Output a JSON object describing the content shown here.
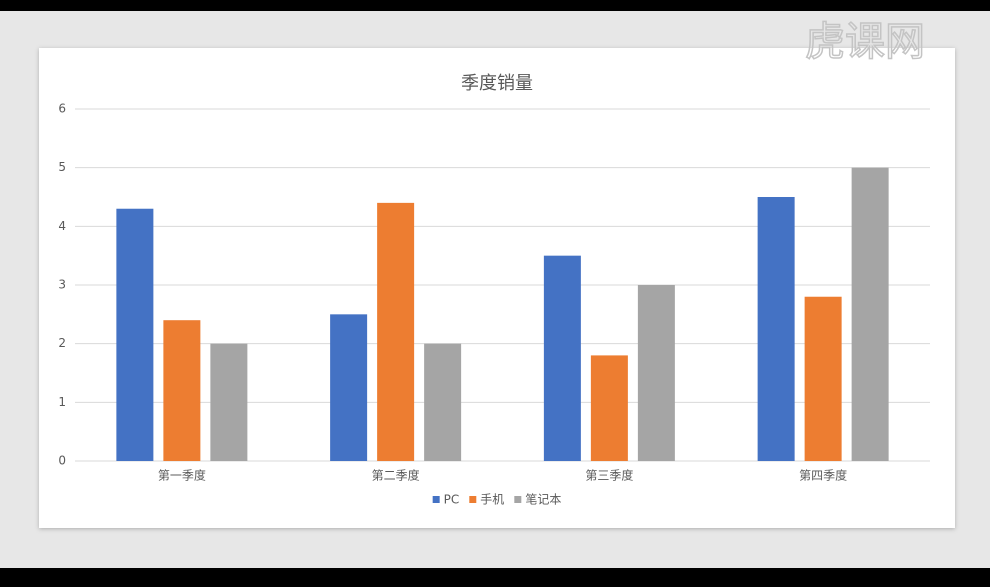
{
  "chart_data": {
    "type": "bar",
    "title": "季度销量",
    "categories": [
      "第一季度",
      "第二季度",
      "第三季度",
      "第四季度"
    ],
    "series": [
      {
        "name": "PC",
        "color": "#4472c4",
        "values": [
          4.3,
          2.5,
          3.5,
          4.5
        ]
      },
      {
        "name": "手机",
        "color": "#ed7d31",
        "values": [
          2.4,
          4.4,
          1.8,
          2.8
        ]
      },
      {
        "name": "笔记本",
        "color": "#a5a5a5",
        "values": [
          2,
          2,
          3,
          5
        ]
      }
    ],
    "ylim": [
      0,
      6
    ],
    "yticks": [
      0,
      1,
      2,
      3,
      4,
      5,
      6
    ],
    "grid": true,
    "legend": "bottom"
  },
  "watermark": "虎课网"
}
